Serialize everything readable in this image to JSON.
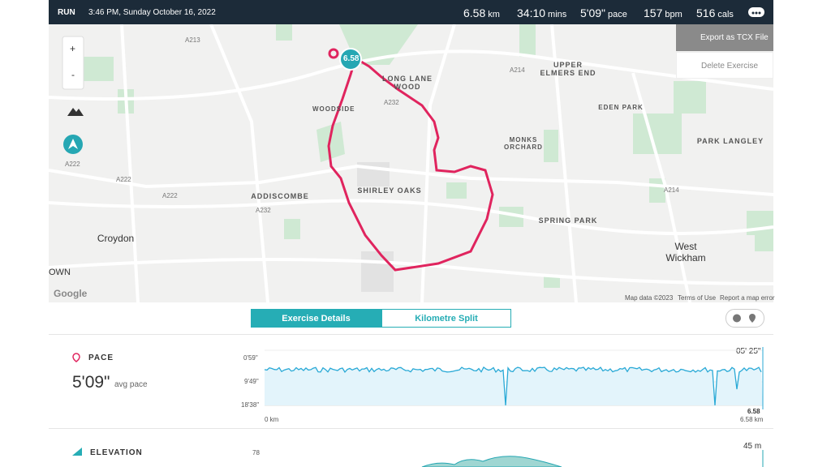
{
  "header": {
    "activity": "RUN",
    "datetime": "3:46 PM, Sunday October 16, 2022",
    "stats": [
      {
        "value": "6.58",
        "unit": "km"
      },
      {
        "value": "34:10",
        "unit": "mins"
      },
      {
        "value": "5'09\"",
        "unit": "pace"
      },
      {
        "value": "157",
        "unit": "bpm"
      },
      {
        "value": "516",
        "unit": "cals"
      }
    ]
  },
  "menu": [
    "Export as TCX File",
    "Delete Exercise"
  ],
  "map": {
    "zoom_in": "+",
    "zoom_out": "-",
    "marker": "6.58",
    "places": [
      "LONG LANE WOOD",
      "UPPER ELMERS END",
      "WOODSIDE",
      "EDEN PARK",
      "MONKS ORCHARD",
      "PARK LANGLEY",
      "SHIRLEY OAKS",
      "ADDISCOMBE",
      "SPRING PARK",
      "Croydon",
      "West Wickham",
      "OWN"
    ],
    "roads": [
      "A222",
      "A214",
      "A222",
      "A222",
      "A232",
      "A214",
      "A213",
      "A232"
    ],
    "logo": "Google",
    "attribution": [
      "Map data ©2023",
      "Terms of Use",
      "Report a map error"
    ]
  },
  "tabs": [
    "Exercise Details",
    "Kilometre Split"
  ],
  "pace": {
    "title": "PACE",
    "value": "5'09\"",
    "caption": "avg pace",
    "y_labels": [
      "0'59\"",
      "9'49\"",
      "18'38\""
    ],
    "x_labels": [
      "0 km",
      "6.58 km"
    ],
    "cursor_value": "05' 25\"",
    "cursor_distance": "6.58"
  },
  "elevation": {
    "title": "ELEVATION",
    "y_label": "78",
    "cursor_value": "45 m"
  }
}
